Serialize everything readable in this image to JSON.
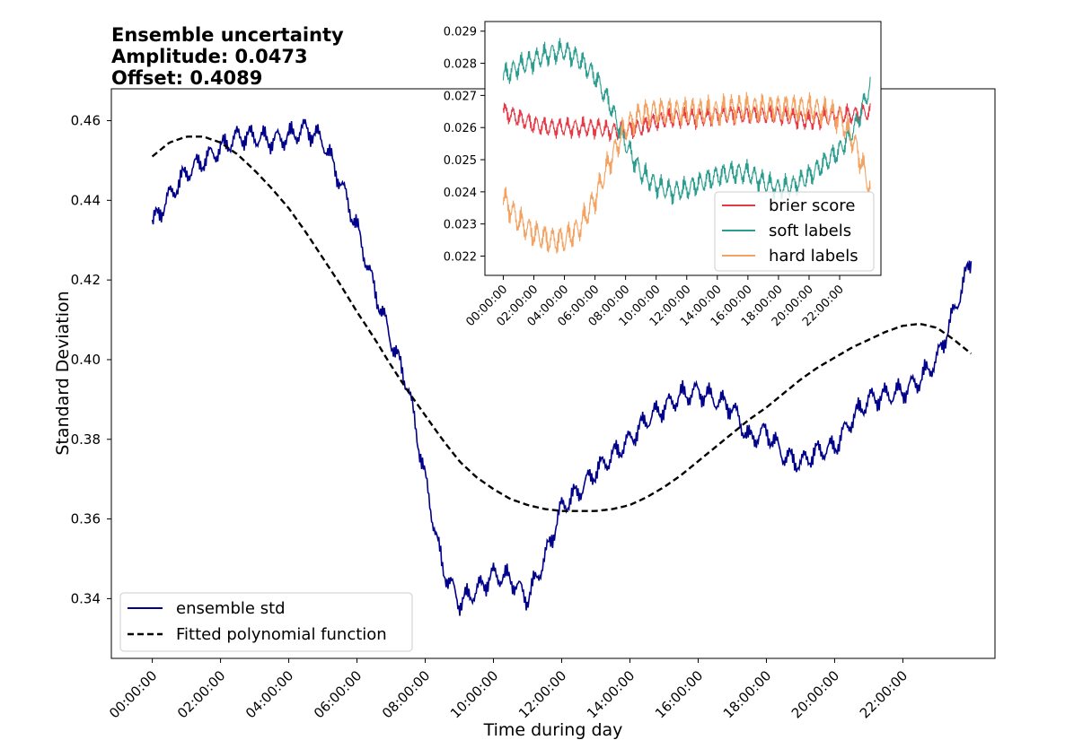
{
  "chart_data": [
    {
      "type": "line",
      "title": [
        "Ensemble uncertainty",
        "Amplitude: 0.0473",
        "Offset: 0.4089"
      ],
      "xlabel": "Time during day",
      "ylabel": "Standard Deviation",
      "xlim": [
        -1.2,
        24.7
      ],
      "ylim": [
        0.325,
        0.468
      ],
      "x_tick_values": [
        0,
        2,
        4,
        6,
        8,
        10,
        12,
        14,
        16,
        18,
        20,
        22
      ],
      "x_tick_labels": [
        "00:00:00",
        "02:00:00",
        "04:00:00",
        "06:00:00",
        "08:00:00",
        "10:00:00",
        "12:00:00",
        "14:00:00",
        "16:00:00",
        "18:00:00",
        "20:00:00",
        "22:00:00"
      ],
      "y_ticks": [
        0.34,
        0.36,
        0.38,
        0.4,
        0.42,
        0.44,
        0.46
      ],
      "y_tick_labels": [
        "0.34",
        "0.36",
        "0.38",
        "0.40",
        "0.42",
        "0.44",
        "0.46"
      ],
      "legend": {
        "position": "lower-left",
        "entries": [
          "ensemble std",
          "Fitted polynomial function"
        ]
      },
      "series": [
        {
          "name": "ensemble std",
          "color": "#00008b",
          "style": "solid",
          "x": [
            0,
            0.5,
            1,
            1.5,
            2,
            2.5,
            3,
            3.5,
            4,
            4.5,
            5,
            5.5,
            6,
            6.5,
            7,
            7.5,
            8,
            8.5,
            9,
            9.5,
            10,
            10.5,
            11,
            11.5,
            12,
            12.5,
            13,
            13.5,
            14,
            14.5,
            15,
            15.5,
            16,
            16.5,
            17,
            17.5,
            18,
            18.5,
            19,
            19.5,
            20,
            20.5,
            21,
            21.5,
            22,
            22.5,
            23,
            23.5,
            24
          ],
          "values": [
            0.434,
            0.441,
            0.447,
            0.45,
            0.453,
            0.456,
            0.456,
            0.455,
            0.456,
            0.458,
            0.455,
            0.445,
            0.433,
            0.418,
            0.405,
            0.393,
            0.37,
            0.348,
            0.339,
            0.342,
            0.346,
            0.345,
            0.34,
            0.35,
            0.363,
            0.367,
            0.372,
            0.376,
            0.38,
            0.385,
            0.388,
            0.391,
            0.392,
            0.39,
            0.388,
            0.38,
            0.382,
            0.376,
            0.374,
            0.377,
            0.378,
            0.385,
            0.39,
            0.391,
            0.392,
            0.395,
            0.4,
            0.412,
            0.425
          ]
        },
        {
          "name": "Fitted polynomial function",
          "color": "#000000",
          "style": "dashed",
          "x": [
            0,
            0.5,
            1,
            1.5,
            2,
            2.5,
            3,
            3.5,
            4,
            4.5,
            5,
            5.5,
            6,
            6.5,
            7,
            7.5,
            8,
            8.5,
            9,
            9.5,
            10,
            10.5,
            11,
            11.5,
            12,
            12.5,
            13,
            13.5,
            14,
            14.5,
            15,
            15.5,
            16,
            16.5,
            17,
            17.5,
            18,
            18.5,
            19,
            19.5,
            20,
            20.5,
            21,
            21.5,
            22,
            22.5,
            23,
            23.5,
            24
          ],
          "values": [
            0.451,
            0.4545,
            0.456,
            0.456,
            0.4545,
            0.4515,
            0.4475,
            0.443,
            0.438,
            0.432,
            0.4255,
            0.419,
            0.412,
            0.4055,
            0.3985,
            0.392,
            0.386,
            0.38,
            0.3745,
            0.3705,
            0.3675,
            0.365,
            0.3635,
            0.3625,
            0.362,
            0.362,
            0.362,
            0.3625,
            0.3635,
            0.3655,
            0.368,
            0.371,
            0.3745,
            0.378,
            0.3815,
            0.385,
            0.388,
            0.3915,
            0.395,
            0.398,
            0.4005,
            0.403,
            0.405,
            0.407,
            0.4085,
            0.409,
            0.408,
            0.405,
            0.4015
          ]
        }
      ]
    },
    {
      "type": "line",
      "title": "",
      "xlim": [
        -1.2,
        24.7
      ],
      "ylim": [
        0.0214,
        0.0293
      ],
      "x_tick_values": [
        0,
        2,
        4,
        6,
        8,
        10,
        12,
        14,
        16,
        18,
        20,
        22
      ],
      "x_tick_labels": [
        "00:00:00",
        "02:00:00",
        "04:00:00",
        "06:00:00",
        "08:00:00",
        "10:00:00",
        "12:00:00",
        "14:00:00",
        "16:00:00",
        "18:00:00",
        "20:00:00",
        "22:00:00"
      ],
      "y_ticks": [
        0.022,
        0.023,
        0.024,
        0.025,
        0.026,
        0.027,
        0.028,
        0.029
      ],
      "y_tick_labels": [
        "0.022",
        "0.023",
        "0.024",
        "0.025",
        "0.026",
        "0.027",
        "0.028",
        "0.029"
      ],
      "legend": {
        "position": "lower-right",
        "entries": [
          "brier score",
          "soft labels",
          "hard labels"
        ]
      },
      "series": [
        {
          "name": "brier score",
          "color": "#e63946",
          "x": [
            0,
            1,
            2,
            3,
            4,
            5,
            6,
            7,
            8,
            9,
            10,
            11,
            12,
            13,
            14,
            15,
            16,
            17,
            18,
            19,
            20,
            21,
            22,
            23,
            24
          ],
          "values": [
            0.0265,
            0.0263,
            0.0261,
            0.026,
            0.026,
            0.026,
            0.026,
            0.0259,
            0.0259,
            0.026,
            0.0262,
            0.0263,
            0.0263,
            0.0263,
            0.0264,
            0.0264,
            0.0264,
            0.0264,
            0.0264,
            0.0263,
            0.0262,
            0.0263,
            0.0264,
            0.0264,
            0.0265
          ]
        },
        {
          "name": "soft labels",
          "color": "#2a9d8f",
          "x": [
            0,
            1,
            2,
            3,
            4,
            5,
            6,
            7,
            8,
            9,
            10,
            11,
            12,
            13,
            14,
            15,
            16,
            17,
            18,
            19,
            20,
            21,
            22,
            23,
            24
          ],
          "values": [
            0.0276,
            0.0279,
            0.0281,
            0.0283,
            0.0284,
            0.0281,
            0.0276,
            0.0267,
            0.0255,
            0.0246,
            0.0242,
            0.024,
            0.0241,
            0.0243,
            0.0245,
            0.0246,
            0.0246,
            0.0243,
            0.0241,
            0.0242,
            0.0245,
            0.0249,
            0.0253,
            0.026,
            0.0273
          ]
        },
        {
          "name": "hard labels",
          "color": "#f4a261",
          "x": [
            0,
            1,
            2,
            3,
            4,
            5,
            6,
            7,
            8,
            9,
            10,
            11,
            12,
            13,
            14,
            15,
            16,
            17,
            18,
            19,
            20,
            21,
            22,
            23,
            24
          ],
          "values": [
            0.0238,
            0.0231,
            0.0227,
            0.0225,
            0.0225,
            0.0229,
            0.0238,
            0.025,
            0.026,
            0.0264,
            0.0265,
            0.0265,
            0.0265,
            0.0265,
            0.0265,
            0.0266,
            0.0266,
            0.0266,
            0.0266,
            0.0266,
            0.0266,
            0.0265,
            0.0263,
            0.0255,
            0.0241
          ]
        }
      ]
    }
  ]
}
